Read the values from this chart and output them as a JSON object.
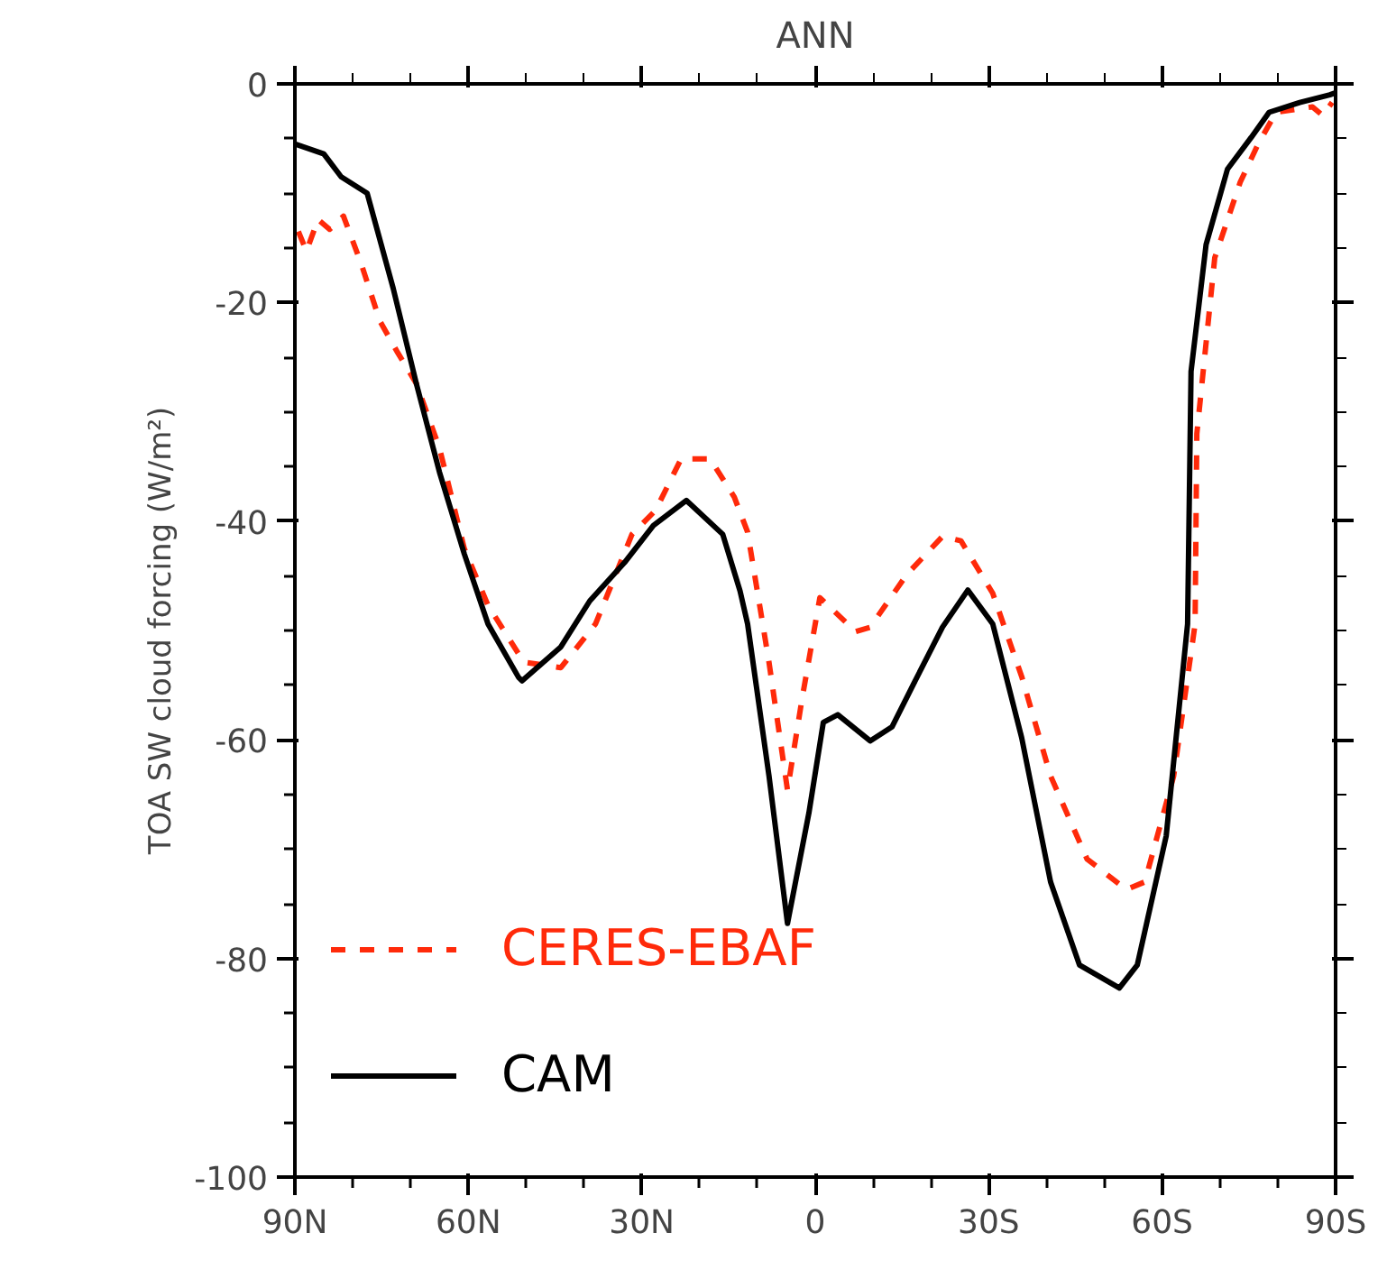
{
  "chart_data": {
    "type": "line",
    "title": "ANN",
    "ylabel": "TOA SW cloud forcing (W/m²)",
    "xlim": [
      90,
      -90
    ],
    "xticks": [
      {
        "value": 90,
        "label": "90N"
      },
      {
        "value": 60,
        "label": "60N"
      },
      {
        "value": 30,
        "label": "30N"
      },
      0,
      {
        "value": -30,
        "label": "30S"
      },
      {
        "value": -60,
        "label": "60S"
      },
      {
        "value": -90,
        "label": "90S"
      }
    ],
    "ylim": [
      -100,
      0
    ],
    "yticks": [
      -100,
      -80,
      -60,
      -40,
      -20,
      0
    ],
    "grid": false,
    "legend": "bottom left",
    "series": [
      {
        "name": "CERES-EBAF",
        "color": "#ff2a0a",
        "line_style": "dashed",
        "x": [
          89.4,
          88,
          86,
          84,
          81.6,
          78.5,
          75.3,
          72.2,
          69,
          65,
          60.7,
          56.6,
          50.4,
          44,
          38,
          31.7,
          27.6,
          23.2,
          18.2,
          14,
          11.7,
          8,
          4.8,
          2.3,
          -0.8,
          -7,
          -9.5,
          -15.8,
          -22,
          -25.2,
          -30.7,
          -35.7,
          -40.7,
          -47,
          -53.8,
          -57,
          -62,
          -65.7,
          -66,
          -69.1,
          -73.5,
          -76.6,
          -79.7,
          -86,
          -87.8,
          -89.4
        ],
        "values": [
          -13.5,
          -15.3,
          -12.4,
          -13.3,
          -12.1,
          -16.5,
          -21.7,
          -24.6,
          -27.4,
          -33.3,
          -42.5,
          -47.7,
          -52.9,
          -53.4,
          -49.4,
          -41.2,
          -39,
          -34.3,
          -34.3,
          -37.8,
          -41,
          -52.9,
          -64.6,
          -56.3,
          -47,
          -50.1,
          -49.7,
          -44.9,
          -41.4,
          -41.8,
          -46.6,
          -54.2,
          -63.3,
          -70.9,
          -73.7,
          -73,
          -63.3,
          -49.4,
          -32,
          -15.9,
          -9,
          -5.5,
          -2.6,
          -2.1,
          -2.9,
          -1.7
        ]
      },
      {
        "name": "CAM",
        "color": "#000000",
        "line_style": "solid",
        "x": [
          90,
          85,
          82,
          77.5,
          73,
          69,
          65,
          60.7,
          56.6,
          51.3,
          50.7,
          44,
          39,
          33,
          28,
          22.3,
          16,
          13,
          11.7,
          8,
          4.8,
          1.1,
          -1.4,
          -3.9,
          -9.5,
          -13.3,
          -17,
          -22,
          -26.4,
          -30.7,
          -35.7,
          -40.7,
          -45.7,
          -52.6,
          -55.7,
          -60.7,
          -64.4,
          -65,
          -67.6,
          -71.3,
          -75.4,
          -78.5,
          -83.8,
          -89,
          -90
        ],
        "values": [
          -5.5,
          -6.4,
          -8.5,
          -10,
          -18.7,
          -27.4,
          -35.5,
          -43,
          -49.4,
          -54.3,
          -54.6,
          -51.5,
          -47.3,
          -43.8,
          -40.4,
          -38.1,
          -41.2,
          -46.4,
          -49.4,
          -63.3,
          -76.8,
          -66.7,
          -58.4,
          -57.7,
          -60.1,
          -58.8,
          -54.9,
          -49.7,
          -46.3,
          -49.4,
          -59.8,
          -73,
          -80.6,
          -82.7,
          -80.6,
          -68.8,
          -49.4,
          -26.3,
          -14.7,
          -7.8,
          -4.9,
          -2.6,
          -1.7,
          -1,
          -0.8
        ]
      }
    ]
  }
}
